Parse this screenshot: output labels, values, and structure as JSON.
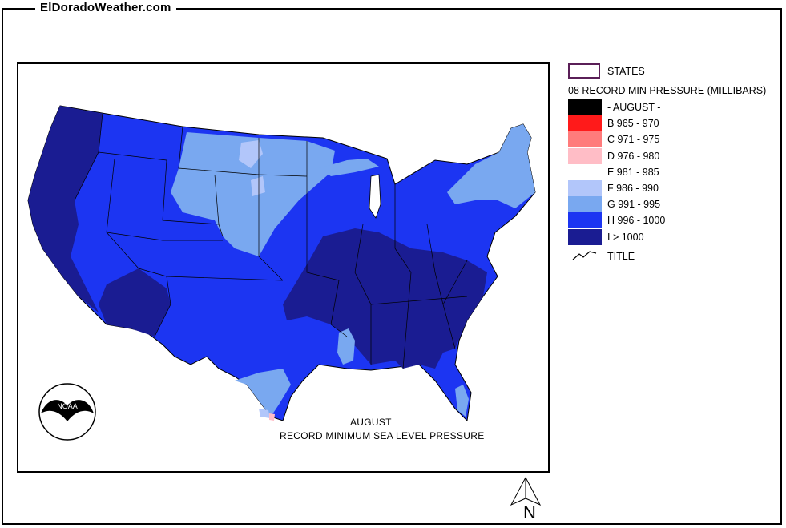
{
  "header": {
    "site_title": "ElDoradoWeather.com"
  },
  "map": {
    "caption_line1": "AUGUST",
    "caption_line2": "RECORD  MINIMUM SEA LEVEL PRESSURE",
    "logo_text": "NOAA"
  },
  "legend": {
    "states_label": "STATES",
    "title": "08 RECORD MIN PRESSURE (MILLIBARS)",
    "items": [
      {
        "label": "- AUGUST -",
        "color": "#000000"
      },
      {
        "label": "B 965 - 970",
        "color": "#ff1a1a"
      },
      {
        "label": "C 971 - 975",
        "color": "#ff7b7b"
      },
      {
        "label": "D 976 - 980",
        "color": "#ffbdc6"
      },
      {
        "label": "E 981 - 985",
        "color": "#ffffff"
      },
      {
        "label": "F 986 - 990",
        "color": "#b2c6fa"
      },
      {
        "label": "G 991 - 995",
        "color": "#79a8f0"
      },
      {
        "label": "H 996 - 1000",
        "color": "#1c35f2"
      },
      {
        "label": "I > 1000",
        "color": "#1a1c92"
      }
    ],
    "title_line_label": "TITLE"
  },
  "compass": {
    "north_label": "N"
  }
}
